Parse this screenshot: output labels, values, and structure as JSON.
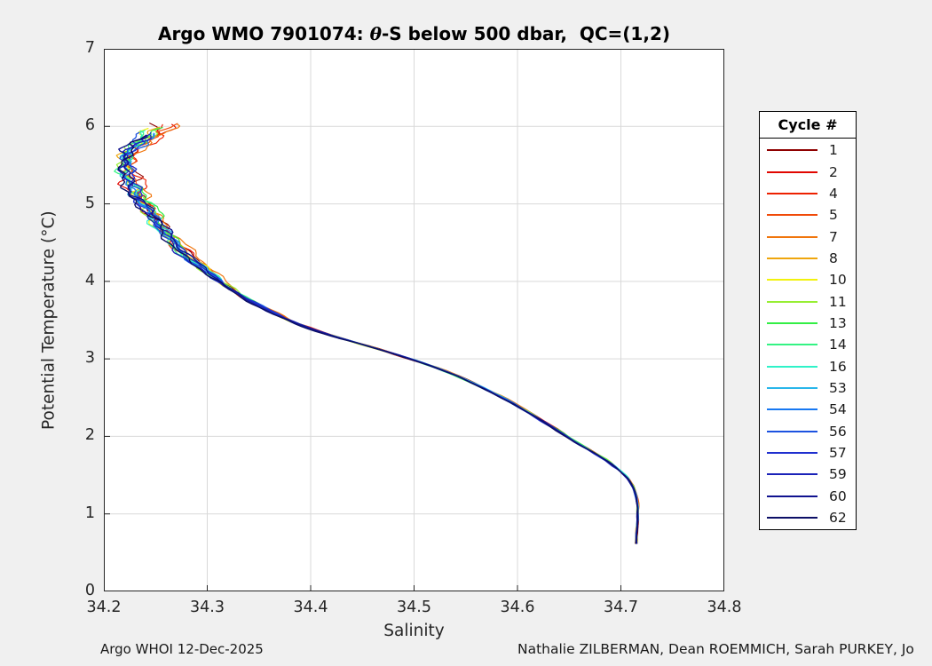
{
  "figure": {
    "title_prefix": "Argo WMO 7901074: ",
    "title_theta": "θ",
    "title_suffix": "-S below 500 dbar,  QC=(1,2)",
    "xlabel": "Salinity",
    "ylabel": "Potential Temperature (°C)",
    "footer_left": "Argo WHOI 12-Dec-2025",
    "footer_right": "Nathalie ZILBERMAN, Dean ROEMMICH, Sarah PURKEY, Jo",
    "legend_title": "Cycle #"
  },
  "chart_data": {
    "type": "line",
    "title": "Argo WMO 7901074: θ-S below 500 dbar,  QC=(1,2)",
    "xlabel": "Salinity",
    "ylabel": "Potential Temperature (°C)",
    "xlim": [
      34.2,
      34.8
    ],
    "ylim": [
      0,
      7
    ],
    "x_ticks": [
      34.2,
      34.3,
      34.4,
      34.5,
      34.6,
      34.7,
      34.8
    ],
    "x_tick_labels": [
      "34.2",
      "34.3",
      "34.4",
      "34.5",
      "34.6",
      "34.7",
      "34.8"
    ],
    "y_ticks": [
      0,
      1,
      2,
      3,
      4,
      5,
      6,
      7
    ],
    "y_tick_labels": [
      "0",
      "1",
      "2",
      "3",
      "4",
      "5",
      "6",
      "7"
    ],
    "grid": true,
    "grid_color": "#d9d9d9",
    "axis_color": "#262626",
    "legend_position": "outside-right",
    "legend_title": "Cycle #",
    "series": [
      {
        "name": "1",
        "color": "#8f0000"
      },
      {
        "name": "2",
        "color": "#e10600"
      },
      {
        "name": "4",
        "color": "#ed2100"
      },
      {
        "name": "5",
        "color": "#f04a08"
      },
      {
        "name": "7",
        "color": "#f0760d"
      },
      {
        "name": "8",
        "color": "#efa60d"
      },
      {
        "name": "10",
        "color": "#f2f20d"
      },
      {
        "name": "11",
        "color": "#97ee33"
      },
      {
        "name": "13",
        "color": "#33ee44"
      },
      {
        "name": "14",
        "color": "#33f383"
      },
      {
        "name": "16",
        "color": "#2ff2c8"
      },
      {
        "name": "53",
        "color": "#29b6ea"
      },
      {
        "name": "54",
        "color": "#1778f2"
      },
      {
        "name": "56",
        "color": "#1c52e0"
      },
      {
        "name": "57",
        "color": "#1f2fcf"
      },
      {
        "name": "59",
        "color": "#1a22b8"
      },
      {
        "name": "60",
        "color": "#10128f"
      },
      {
        "name": "62",
        "color": "#0c0f66"
      }
    ],
    "base_curve_S_T": [
      [
        34.258,
        6.04
      ],
      [
        34.2525,
        5.97
      ],
      [
        34.246,
        5.9
      ],
      [
        34.2385,
        5.83
      ],
      [
        34.2315,
        5.76
      ],
      [
        34.2265,
        5.69
      ],
      [
        34.2235,
        5.61
      ],
      [
        34.222,
        5.53
      ],
      [
        34.2215,
        5.45
      ],
      [
        34.2225,
        5.37
      ],
      [
        34.225,
        5.29
      ],
      [
        34.2285,
        5.21
      ],
      [
        34.2325,
        5.13
      ],
      [
        34.2365,
        5.05
      ],
      [
        34.241,
        4.96
      ],
      [
        34.2455,
        4.87
      ],
      [
        34.2505,
        4.78
      ],
      [
        34.256,
        4.68
      ],
      [
        34.2625,
        4.58
      ],
      [
        34.27,
        4.47
      ],
      [
        34.2785,
        4.36
      ],
      [
        34.288,
        4.25
      ],
      [
        34.298,
        4.14
      ],
      [
        34.309,
        4.03
      ],
      [
        34.321,
        3.92
      ],
      [
        34.335,
        3.8
      ],
      [
        34.351,
        3.68
      ],
      [
        34.368,
        3.57
      ],
      [
        34.386,
        3.46
      ],
      [
        34.406,
        3.36
      ],
      [
        34.428,
        3.27
      ],
      [
        34.452,
        3.18
      ],
      [
        34.477,
        3.08
      ],
      [
        34.501,
        2.98
      ],
      [
        34.523,
        2.88
      ],
      [
        34.544,
        2.77
      ],
      [
        34.563,
        2.65
      ],
      [
        34.581,
        2.53
      ],
      [
        34.599,
        2.4
      ],
      [
        34.617,
        2.26
      ],
      [
        34.635,
        2.11
      ],
      [
        34.652,
        1.96
      ],
      [
        34.67,
        1.82
      ],
      [
        34.685,
        1.7
      ],
      [
        34.697,
        1.58
      ],
      [
        34.706,
        1.47
      ],
      [
        34.712,
        1.35
      ],
      [
        34.715,
        1.22
      ],
      [
        34.7165,
        1.08
      ],
      [
        34.7165,
        0.92
      ],
      [
        34.7155,
        0.75
      ],
      [
        34.715,
        0.62
      ]
    ],
    "scatter_S_above_4p5C": 0.013,
    "scatter_S_below_3C": 0.003,
    "tip_T_range": [
      5.87,
      6.04
    ]
  }
}
